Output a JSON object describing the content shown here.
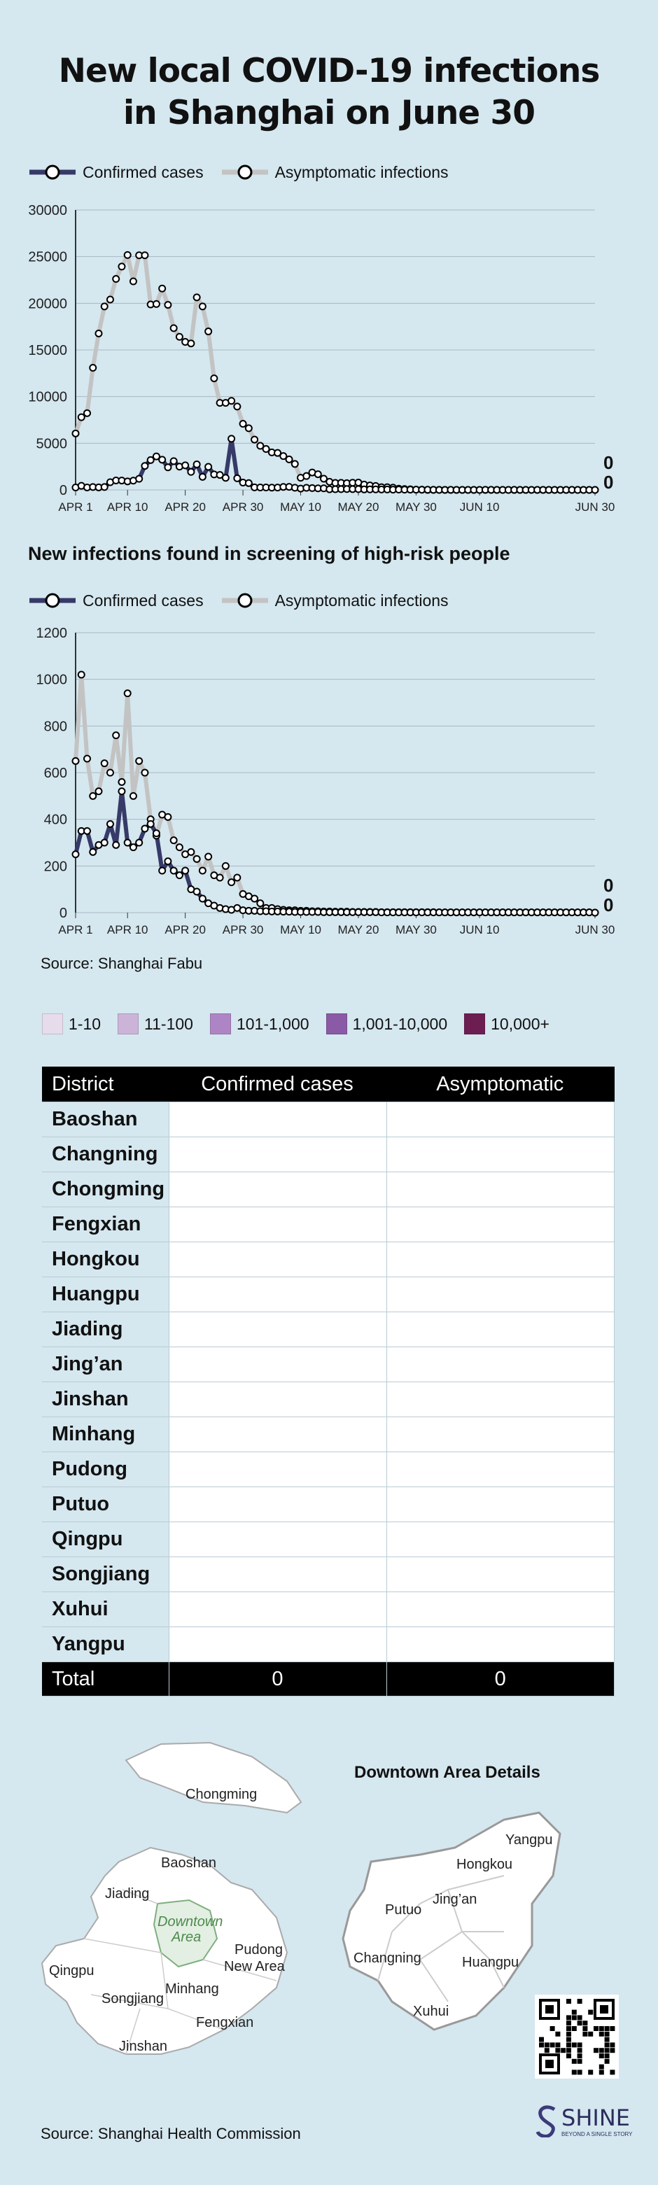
{
  "title_line1": "New local COVID-19 infections",
  "title_line2": "in Shanghai on June 30",
  "legend": {
    "confirmed": "Confirmed cases",
    "asymptomatic": "Asymptomatic infections"
  },
  "colors": {
    "confirmed": "#363a68",
    "asymptomatic": "#c3c3c3",
    "background": "#d5e7ef"
  },
  "chart_data": [
    {
      "type": "line",
      "title": "",
      "x": [
        "2022-04-01",
        "2022-04-02",
        "2022-04-03",
        "2022-04-04",
        "2022-04-05",
        "2022-04-06",
        "2022-04-07",
        "2022-04-08",
        "2022-04-09",
        "2022-04-10",
        "2022-04-11",
        "2022-04-12",
        "2022-04-13",
        "2022-04-14",
        "2022-04-15",
        "2022-04-16",
        "2022-04-17",
        "2022-04-18",
        "2022-04-19",
        "2022-04-20",
        "2022-04-21",
        "2022-04-22",
        "2022-04-23",
        "2022-04-24",
        "2022-04-25",
        "2022-04-26",
        "2022-04-27",
        "2022-04-28",
        "2022-04-29",
        "2022-04-30",
        "2022-05-01",
        "2022-05-02",
        "2022-05-03",
        "2022-05-04",
        "2022-05-05",
        "2022-05-06",
        "2022-05-07",
        "2022-05-08",
        "2022-05-09",
        "2022-05-10",
        "2022-05-11",
        "2022-05-12",
        "2022-05-13",
        "2022-05-14",
        "2022-05-15",
        "2022-05-16",
        "2022-05-17",
        "2022-05-18",
        "2022-05-19",
        "2022-05-20",
        "2022-05-21",
        "2022-05-22",
        "2022-05-23",
        "2022-05-24",
        "2022-05-25",
        "2022-05-26",
        "2022-05-27",
        "2022-05-28",
        "2022-05-29",
        "2022-05-30",
        "2022-05-31",
        "2022-06-01",
        "2022-06-02",
        "2022-06-03",
        "2022-06-04",
        "2022-06-05",
        "2022-06-06",
        "2022-06-07",
        "2022-06-08",
        "2022-06-09",
        "2022-06-10",
        "2022-06-11",
        "2022-06-12",
        "2022-06-13",
        "2022-06-14",
        "2022-06-15",
        "2022-06-16",
        "2022-06-17",
        "2022-06-18",
        "2022-06-19",
        "2022-06-20",
        "2022-06-21",
        "2022-06-22",
        "2022-06-23",
        "2022-06-24",
        "2022-06-25",
        "2022-06-26",
        "2022-06-27",
        "2022-06-28",
        "2022-06-29",
        "2022-06-30"
      ],
      "x_ticks": [
        "APR 1",
        "APR 10",
        "APR 20",
        "APR 30",
        "MAY 10",
        "MAY 20",
        "MAY 30",
        "JUN 10",
        "JUN 30"
      ],
      "x_tick_dates": [
        "2022-04-01",
        "2022-04-10",
        "2022-04-20",
        "2022-04-30",
        "2022-05-10",
        "2022-05-20",
        "2022-05-30",
        "2022-06-10",
        "2022-06-30"
      ],
      "y_ticks": [
        0,
        5000,
        10000,
        15000,
        20000,
        25000,
        30000
      ],
      "ylim": [
        0,
        30000
      ],
      "series": [
        {
          "name": "Confirmed cases",
          "values": [
            260,
            438,
            267,
            311,
            268,
            311,
            824,
            1015,
            1006,
            914,
            994,
            1189,
            2573,
            3200,
            3590,
            3238,
            2417,
            3084,
            2494,
            2634,
            1931,
            2736,
            1401,
            2472,
            1661,
            1606,
            1292,
            5487,
            1249,
            788,
            727,
            274,
            260,
            261,
            245,
            253,
            322,
            329,
            234,
            144,
            227,
            194,
            166,
            166,
            69,
            77,
            82,
            96,
            88,
            84,
            52,
            55,
            58,
            44,
            45,
            29,
            39,
            28,
            31,
            29,
            22,
            15,
            10,
            4,
            3,
            5,
            4,
            3,
            4,
            3,
            2,
            8,
            6,
            3,
            2,
            2,
            5,
            3,
            4,
            4,
            4,
            4,
            3,
            4,
            4,
            4,
            6,
            2,
            1,
            1,
            0
          ]
        },
        {
          "name": "Asymptomatic infections",
          "values": [
            6051,
            7788,
            8226,
            13086,
            16766,
            19660,
            20398,
            22609,
            23937,
            25173,
            22348,
            25141,
            25146,
            19872,
            19923,
            21582,
            19831,
            17332,
            16407,
            15861,
            15698,
            20634,
            19657,
            16983,
            11956,
            9330,
            9330,
            9545,
            8932,
            7084,
            6606,
            5395,
            4722,
            4390,
            4024,
            3961,
            3625,
            3269,
            2780,
            1305,
            1487,
            1869,
            1681,
            1203,
            869,
            746,
            759,
            719,
            770,
            784,
            570,
            480,
            422,
            290,
            290,
            247,
            132,
            93,
            67,
            29,
            31,
            5,
            5,
            11,
            0,
            0,
            0,
            0,
            0,
            0,
            0,
            0,
            0,
            0,
            0,
            0,
            0,
            0,
            0,
            0,
            0,
            0,
            0,
            0,
            0,
            0,
            0,
            0,
            0,
            0,
            0
          ]
        }
      ],
      "end_labels": [
        "0",
        "0"
      ]
    },
    {
      "type": "line",
      "title": "New infections found in screening of high-risk people",
      "x": [
        "2022-04-01",
        "2022-04-02",
        "2022-04-03",
        "2022-04-04",
        "2022-04-05",
        "2022-04-06",
        "2022-04-07",
        "2022-04-08",
        "2022-04-09",
        "2022-04-10",
        "2022-04-11",
        "2022-04-12",
        "2022-04-13",
        "2022-04-14",
        "2022-04-15",
        "2022-04-16",
        "2022-04-17",
        "2022-04-18",
        "2022-04-19",
        "2022-04-20",
        "2022-04-21",
        "2022-04-22",
        "2022-04-23",
        "2022-04-24",
        "2022-04-25",
        "2022-04-26",
        "2022-04-27",
        "2022-04-28",
        "2022-04-29",
        "2022-04-30",
        "2022-05-01",
        "2022-05-02",
        "2022-05-03",
        "2022-05-04",
        "2022-05-05",
        "2022-05-06",
        "2022-05-07",
        "2022-05-08",
        "2022-05-09",
        "2022-05-10",
        "2022-05-11",
        "2022-05-12",
        "2022-05-13",
        "2022-05-14",
        "2022-05-15",
        "2022-05-16",
        "2022-05-17",
        "2022-05-18",
        "2022-05-19",
        "2022-05-20",
        "2022-05-21",
        "2022-05-22",
        "2022-05-23",
        "2022-05-24",
        "2022-05-25",
        "2022-05-26",
        "2022-05-27",
        "2022-05-28",
        "2022-05-29",
        "2022-05-30",
        "2022-05-31",
        "2022-06-01",
        "2022-06-02",
        "2022-06-03",
        "2022-06-04",
        "2022-06-05",
        "2022-06-06",
        "2022-06-07",
        "2022-06-08",
        "2022-06-09",
        "2022-06-10",
        "2022-06-11",
        "2022-06-12",
        "2022-06-13",
        "2022-06-14",
        "2022-06-15",
        "2022-06-16",
        "2022-06-17",
        "2022-06-18",
        "2022-06-19",
        "2022-06-20",
        "2022-06-21",
        "2022-06-22",
        "2022-06-23",
        "2022-06-24",
        "2022-06-25",
        "2022-06-26",
        "2022-06-27",
        "2022-06-28",
        "2022-06-29",
        "2022-06-30"
      ],
      "x_ticks": [
        "APR 1",
        "APR 10",
        "APR 20",
        "APR 30",
        "MAY 10",
        "MAY 20",
        "MAY 30",
        "JUN 10",
        "JUN 30"
      ],
      "x_tick_dates": [
        "2022-04-01",
        "2022-04-10",
        "2022-04-20",
        "2022-04-30",
        "2022-05-10",
        "2022-05-20",
        "2022-05-30",
        "2022-06-10",
        "2022-06-30"
      ],
      "y_ticks": [
        0,
        200,
        400,
        600,
        800,
        1000,
        1200
      ],
      "ylim": [
        0,
        1200
      ],
      "series": [
        {
          "name": "Confirmed cases",
          "values": [
            250,
            350,
            350,
            260,
            290,
            300,
            380,
            290,
            520,
            300,
            280,
            300,
            360,
            380,
            340,
            180,
            220,
            180,
            160,
            180,
            100,
            90,
            60,
            40,
            30,
            20,
            15,
            12,
            20,
            10,
            8,
            8,
            6,
            6,
            5,
            5,
            4,
            4,
            3,
            3,
            3,
            3,
            3,
            2,
            2,
            2,
            2,
            2,
            2,
            2,
            2,
            2,
            2,
            1,
            1,
            1,
            1,
            1,
            1,
            1,
            1,
            1,
            1,
            1,
            1,
            1,
            1,
            1,
            1,
            1,
            1,
            1,
            1,
            1,
            1,
            1,
            1,
            1,
            1,
            1,
            1,
            1,
            1,
            1,
            1,
            1,
            1,
            1,
            1,
            1,
            0
          ]
        },
        {
          "name": "Asymptomatic infections",
          "values": [
            650,
            1020,
            660,
            500,
            520,
            640,
            600,
            760,
            560,
            940,
            500,
            650,
            600,
            400,
            330,
            420,
            410,
            310,
            280,
            250,
            260,
            230,
            180,
            240,
            160,
            150,
            200,
            130,
            150,
            80,
            70,
            60,
            40,
            20,
            20,
            15,
            12,
            10,
            10,
            8,
            8,
            6,
            6,
            5,
            5,
            4,
            4,
            4,
            3,
            3,
            3,
            3,
            3,
            2,
            2,
            2,
            2,
            2,
            2,
            2,
            2,
            2,
            2,
            1,
            1,
            1,
            1,
            1,
            1,
            1,
            1,
            1,
            1,
            1,
            1,
            1,
            1,
            1,
            1,
            1,
            1,
            1,
            1,
            1,
            1,
            1,
            1,
            1,
            1,
            1,
            0
          ]
        }
      ],
      "end_labels": [
        "0",
        "0"
      ]
    }
  ],
  "source1": "Source: Shanghai Fabu",
  "scale_legend": [
    {
      "label": "1-10",
      "color": "#e7dcec"
    },
    {
      "label": "11-100",
      "color": "#ccb4d9"
    },
    {
      "label": "101-1,000",
      "color": "#ae85c4"
    },
    {
      "label": "1,001-10,000",
      "color": "#8a5aa6"
    },
    {
      "label": "10,000+",
      "color": "#6c1e52"
    }
  ],
  "table": {
    "headers": [
      "District",
      "Confirmed cases",
      "Asymptomatic"
    ],
    "districts": [
      "Baoshan",
      "Changning",
      "Chongming",
      "Fengxian",
      "Hongkou",
      "Huangpu",
      "Jiading",
      "Jing’an",
      "Jinshan",
      "Minhang",
      "Pudong",
      "Putuo",
      "Qingpu",
      "Songjiang",
      "Xuhui",
      "Yangpu"
    ],
    "total_label": "Total",
    "total_confirmed": "0",
    "total_asymptomatic": "0"
  },
  "map": {
    "labels": [
      "Chongming",
      "Baoshan",
      "Jiading",
      "Downtown",
      "Area",
      "Pudong",
      "New Area",
      "Qingpu",
      "Songjiang",
      "Minhang",
      "Fengxian",
      "Jinshan"
    ],
    "detail_title": "Downtown Area Details",
    "detail_labels": [
      "Yangpu",
      "Hongkou",
      "Jing’an",
      "Putuo",
      "Changning",
      "Huangpu",
      "Xuhui"
    ]
  },
  "source2": "Source: Shanghai Health Commission",
  "logo": {
    "name": "SHINE",
    "tagline": "BEYOND A SINGLE STORY"
  }
}
